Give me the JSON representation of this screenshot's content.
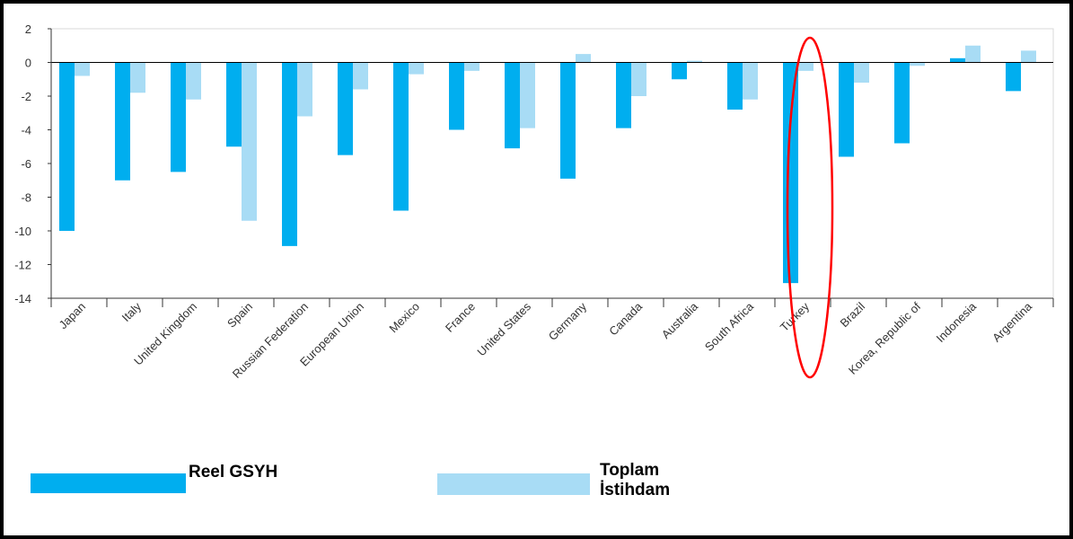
{
  "chart_data": {
    "type": "bar",
    "categories": [
      "Japan",
      "Italy",
      "United Kingdom",
      "Spain",
      "Russian Federation",
      "European Union",
      "Mexico",
      "France",
      "United States",
      "Germany",
      "Canada",
      "Australia",
      "South Africa",
      "Turkey",
      "Brazil",
      "Korea, Republic of",
      "Indonesia",
      "Argentina"
    ],
    "series": [
      {
        "name": "Reel GSYH",
        "color": "#00aeef",
        "values": [
          -10.0,
          -7.0,
          -6.5,
          -5.0,
          -10.9,
          -5.5,
          -8.8,
          -4.0,
          -5.1,
          -6.9,
          -3.9,
          -1.0,
          -2.8,
          -13.1,
          -5.6,
          -4.8,
          0.25,
          -1.7
        ]
      },
      {
        "name": "Toplam\nİstihdam",
        "color": "#a8dcf5",
        "values": [
          -0.8,
          -1.8,
          -2.2,
          -9.4,
          -3.2,
          -1.6,
          -0.7,
          -0.5,
          -3.9,
          0.5,
          -2.0,
          0.1,
          -2.2,
          -0.5,
          -1.2,
          -0.2,
          1.0,
          0.7
        ]
      }
    ],
    "y_ticks": [
      "2",
      "0",
      "-2",
      "-4",
      "-6",
      "-8",
      "-10",
      "-12",
      "-14"
    ],
    "ylim": [
      -14,
      2
    ],
    "highlight": {
      "category": "Turkey",
      "shape": "ellipse",
      "color": "#ff0000"
    },
    "legend": {
      "placement": "bottom-left"
    }
  }
}
